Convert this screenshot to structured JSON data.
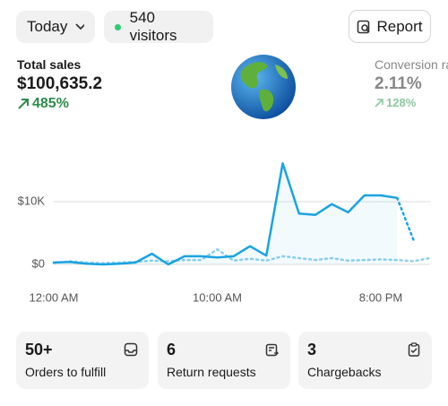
{
  "header": {
    "period": "Today",
    "visitors": "540 visitors",
    "report": "Report"
  },
  "metrics": [
    {
      "label": "Total sales",
      "value": "$100,635.2",
      "change": "485%"
    },
    {
      "label": "Conversion rate",
      "value": "2.11%",
      "change": "128%"
    }
  ],
  "chart_data": {
    "type": "line",
    "categories": [
      "12:00 AM",
      null,
      null,
      null,
      null,
      null,
      null,
      null,
      null,
      null,
      "10:00 AM",
      null,
      null,
      null,
      null,
      null,
      null,
      null,
      null,
      null,
      "8:00 PM",
      null,
      null,
      null
    ],
    "series": [
      {
        "color": "#1aa3e0",
        "dash": false,
        "values": [
          300,
          400,
          100,
          0,
          100,
          300,
          1700,
          0,
          1300,
          1300,
          1100,
          1300,
          2900,
          1400,
          16100,
          8100,
          7900,
          9600,
          8300,
          11000,
          11000,
          10600,
          null,
          null
        ]
      },
      {
        "color": "#1aa3e0",
        "dash": true,
        "values": [
          null,
          null,
          null,
          null,
          null,
          null,
          null,
          null,
          null,
          null,
          null,
          null,
          null,
          null,
          null,
          null,
          null,
          null,
          null,
          null,
          null,
          10600,
          3900,
          null
        ]
      },
      {
        "color": "#8fd0ee",
        "dash": true,
        "values": [
          200,
          500,
          300,
          200,
          300,
          400,
          600,
          500,
          700,
          700,
          2400,
          600,
          900,
          600,
          1300,
          1000,
          700,
          1000,
          600,
          700,
          800,
          700,
          500,
          1000
        ]
      }
    ],
    "ylim": [
      0,
      17000
    ],
    "yticks": [
      {
        "value": 0,
        "label": "$0"
      },
      {
        "value": 10000,
        "label": "$10K"
      }
    ],
    "grid": true,
    "area": true
  },
  "cards": [
    {
      "value": "50+",
      "label": "Orders to fulfill"
    },
    {
      "value": "6",
      "label": "Return requests"
    },
    {
      "value": "3",
      "label": "Chargebacks"
    }
  ]
}
